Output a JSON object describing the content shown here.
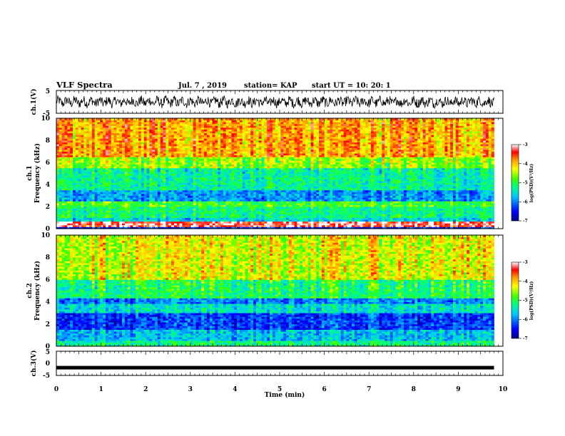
{
  "header": {
    "title": "VLF Spectra",
    "date": "Jul. 7 , 2019",
    "station": "station= KAP",
    "start": "start UT =  10: 20: 1"
  },
  "chart_data": [
    {
      "type": "line",
      "name": "ch1-waveform",
      "ylabel": "ch.1(V)",
      "ylim": [
        -5,
        5
      ],
      "y_ticks": [
        "5",
        "-5"
      ],
      "xlim": [
        0,
        10
      ],
      "data_xlim": [
        0,
        9.8
      ],
      "amplitude_range": [
        -3.6,
        3.2
      ]
    },
    {
      "type": "heatmap",
      "name": "ch1-spectrogram",
      "ylabel": "ch.1\nFrequency (kHz)",
      "ylim": [
        0,
        10
      ],
      "y_ticks": [
        "0",
        "2",
        "4",
        "6",
        "8",
        "10"
      ],
      "xlim": [
        0,
        10
      ],
      "data_xlim": [
        0,
        9.8
      ],
      "colorbar": {
        "label": "log(PSD)(V²/Hz)",
        "range": [
          -7,
          -3
        ],
        "ticks": [
          "-3",
          "-4",
          "-5",
          "-6",
          "-7"
        ]
      },
      "bands": [
        {
          "f": [
            0,
            0.25
          ],
          "level": -6.4
        },
        {
          "f": [
            0.25,
            0.6
          ],
          "level": -3.2
        },
        {
          "f": [
            0.6,
            1.0
          ],
          "level": -5.6
        },
        {
          "f": [
            1.0,
            2.0
          ],
          "level": -5.2
        },
        {
          "f": [
            2.0,
            2.5
          ],
          "level": -4.9
        },
        {
          "f": [
            2.5,
            3.5
          ],
          "level": -5.9
        },
        {
          "f": [
            3.5,
            5.5
          ],
          "level": -5.3
        },
        {
          "f": [
            5.5,
            6.5
          ],
          "level": -4.6
        },
        {
          "f": [
            6.5,
            10.0
          ],
          "level": -3.9
        }
      ]
    },
    {
      "type": "heatmap",
      "name": "ch2-spectrogram",
      "ylabel": "ch.2\nFrequency (kHz)",
      "ylim": [
        0,
        10
      ],
      "y_ticks": [
        "0",
        "2",
        "4",
        "6",
        "8",
        "10"
      ],
      "xlim": [
        0,
        10
      ],
      "data_xlim": [
        0,
        9.8
      ],
      "colorbar": {
        "label": "log(PSD)(V²/Hz)",
        "range": [
          -7,
          -3
        ],
        "ticks": [
          "-3",
          "-4",
          "-5",
          "-6",
          "-7"
        ]
      },
      "bands": [
        {
          "f": [
            0,
            0.5
          ],
          "level": -5.2
        },
        {
          "f": [
            0.5,
            1.5
          ],
          "level": -5.7
        },
        {
          "f": [
            1.5,
            3.0
          ],
          "level": -6.3
        },
        {
          "f": [
            3.0,
            3.8
          ],
          "level": -5.5
        },
        {
          "f": [
            3.8,
            4.3
          ],
          "level": -6.0
        },
        {
          "f": [
            4.3,
            6.0
          ],
          "level": -5.1
        },
        {
          "f": [
            6.0,
            10.0
          ],
          "level": -4.3
        }
      ]
    },
    {
      "type": "line",
      "name": "ch3-waveform",
      "ylabel": "ch.3(V)",
      "ylim": [
        -5,
        5
      ],
      "y_ticks": [
        "5",
        "0",
        "-5"
      ],
      "xlim": [
        0,
        10
      ],
      "data_xlim": [
        0,
        9.8
      ],
      "constant_value": -1.8,
      "xlabel": "Time (min)",
      "x_ticks": [
        "0",
        "1",
        "2",
        "3",
        "4",
        "5",
        "6",
        "7",
        "8",
        "9",
        "10"
      ]
    }
  ]
}
